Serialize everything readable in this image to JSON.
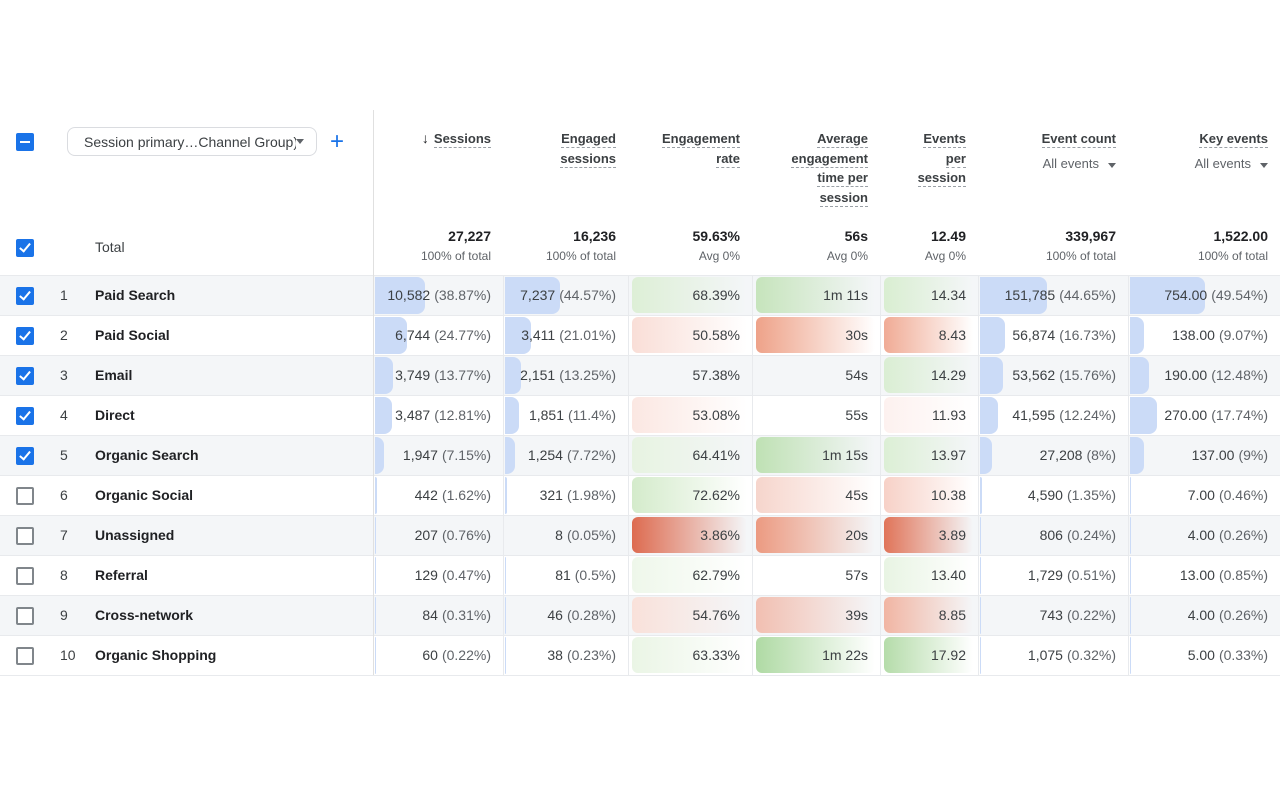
{
  "toolbar": {
    "dimension_label": "Session primary…Channel Group)",
    "add_label": "+"
  },
  "columns": [
    {
      "id": "sessions",
      "header_lines": [
        "Sessions"
      ],
      "sorted": true,
      "type": "bar"
    },
    {
      "id": "engaged-sessions",
      "header_lines": [
        "Engaged",
        "sessions"
      ],
      "type": "bar"
    },
    {
      "id": "engagement-rate",
      "header_lines": [
        "Engagement",
        "rate"
      ],
      "type": "heat"
    },
    {
      "id": "avg-engagement-time",
      "header_lines": [
        "Average",
        "engagement",
        "time per",
        "session"
      ],
      "type": "heat"
    },
    {
      "id": "events-per-session",
      "header_lines": [
        "Events",
        "per",
        "session"
      ],
      "type": "heat"
    },
    {
      "id": "event-count",
      "header_lines": [
        "Event count"
      ],
      "filter": "All events",
      "type": "bar"
    },
    {
      "id": "key-events",
      "header_lines": [
        "Key events"
      ],
      "filter": "All events",
      "type": "bar"
    }
  ],
  "totals": {
    "label": "Total",
    "cells": [
      {
        "value": "27,227",
        "sub": "100% of total"
      },
      {
        "value": "16,236",
        "sub": "100% of total"
      },
      {
        "value": "59.63%",
        "sub": "Avg 0%"
      },
      {
        "value": "56s",
        "sub": "Avg 0%"
      },
      {
        "value": "12.49",
        "sub": "Avg 0%"
      },
      {
        "value": "339,967",
        "sub": "100% of total"
      },
      {
        "value": "1,522.00",
        "sub": "100% of total"
      }
    ]
  },
  "rows": [
    {
      "num": "1",
      "name": "Paid Search",
      "checked": true,
      "cells": [
        {
          "text": "10,582",
          "pct": "(38.87%)",
          "bar": 38.87
        },
        {
          "text": "7,237",
          "pct": "(44.57%)",
          "bar": 44.57
        },
        {
          "text": "68.39%",
          "heat": "#ddefd6"
        },
        {
          "text": "1m 11s",
          "heat": "#c6e4bc"
        },
        {
          "text": "14.34",
          "heat": "#d9eed1"
        },
        {
          "text": "151,785",
          "pct": "(44.65%)",
          "bar": 44.65
        },
        {
          "text": "754.00",
          "pct": "(49.54%)",
          "bar": 49.54
        }
      ]
    },
    {
      "num": "2",
      "name": "Paid Social",
      "checked": true,
      "cells": [
        {
          "text": "6,744",
          "pct": "(24.77%)",
          "bar": 24.77
        },
        {
          "text": "3,411",
          "pct": "(21.01%)",
          "bar": 21.01
        },
        {
          "text": "50.58%",
          "heat": "#f9ded7"
        },
        {
          "text": "30s",
          "heat": "#eea289"
        },
        {
          "text": "8.43",
          "heat": "#f0ab95"
        },
        {
          "text": "56,874",
          "pct": "(16.73%)",
          "bar": 16.73
        },
        {
          "text": "138.00",
          "pct": "(9.07%)",
          "bar": 9.07
        }
      ]
    },
    {
      "num": "3",
      "name": "Email",
      "checked": true,
      "cells": [
        {
          "text": "3,749",
          "pct": "(13.77%)",
          "bar": 13.77
        },
        {
          "text": "2,151",
          "pct": "(13.25%)",
          "bar": 13.25
        },
        {
          "text": "57.38%",
          "heat": null
        },
        {
          "text": "54s",
          "heat": null
        },
        {
          "text": "14.29",
          "heat": "#daeed3"
        },
        {
          "text": "53,562",
          "pct": "(15.76%)",
          "bar": 15.76
        },
        {
          "text": "190.00",
          "pct": "(12.48%)",
          "bar": 12.48
        }
      ]
    },
    {
      "num": "4",
      "name": "Direct",
      "checked": true,
      "cells": [
        {
          "text": "3,487",
          "pct": "(12.81%)",
          "bar": 12.81
        },
        {
          "text": "1,851",
          "pct": "(11.4%)",
          "bar": 11.4
        },
        {
          "text": "53.08%",
          "heat": "#fbe7e2"
        },
        {
          "text": "55s",
          "heat": null
        },
        {
          "text": "11.93",
          "heat": "#fdf1ef"
        },
        {
          "text": "41,595",
          "pct": "(12.24%)",
          "bar": 12.24
        },
        {
          "text": "270.00",
          "pct": "(17.74%)",
          "bar": 17.74
        }
      ]
    },
    {
      "num": "5",
      "name": "Organic Search",
      "checked": true,
      "cells": [
        {
          "text": "1,947",
          "pct": "(7.15%)",
          "bar": 7.15
        },
        {
          "text": "1,254",
          "pct": "(7.72%)",
          "bar": 7.72
        },
        {
          "text": "64.41%",
          "heat": "#e7f3e1"
        },
        {
          "text": "1m 15s",
          "heat": "#bfe1b4"
        },
        {
          "text": "13.97",
          "heat": "#dcefd5"
        },
        {
          "text": "27,208",
          "pct": "(8%)",
          "bar": 8
        },
        {
          "text": "137.00",
          "pct": "(9%)",
          "bar": 9
        }
      ]
    },
    {
      "num": "6",
      "name": "Organic Social",
      "checked": false,
      "cells": [
        {
          "text": "442",
          "pct": "(1.62%)",
          "bar": 1.62
        },
        {
          "text": "321",
          "pct": "(1.98%)",
          "bar": 1.98
        },
        {
          "text": "72.62%",
          "heat": "#d4ebcb"
        },
        {
          "text": "45s",
          "heat": "#f6d5cc"
        },
        {
          "text": "10.38",
          "heat": "#f7d1c7"
        },
        {
          "text": "4,590",
          "pct": "(1.35%)",
          "bar": 1.35
        },
        {
          "text": "7.00",
          "pct": "(0.46%)",
          "bar": 0.46
        }
      ]
    },
    {
      "num": "7",
      "name": "Unassigned",
      "checked": false,
      "cells": [
        {
          "text": "207",
          "pct": "(0.76%)",
          "bar": 0.76
        },
        {
          "text": "8",
          "pct": "(0.05%)",
          "bar": 0.05
        },
        {
          "text": "3.86%",
          "heat": "#dd6b50"
        },
        {
          "text": "20s",
          "heat": "#ec9a81"
        },
        {
          "text": "3.89",
          "heat": "#e07459"
        },
        {
          "text": "806",
          "pct": "(0.24%)",
          "bar": 0.24
        },
        {
          "text": "4.00",
          "pct": "(0.26%)",
          "bar": 0.26
        }
      ]
    },
    {
      "num": "8",
      "name": "Referral",
      "checked": false,
      "cells": [
        {
          "text": "129",
          "pct": "(0.47%)",
          "bar": 0.47
        },
        {
          "text": "81",
          "pct": "(0.5%)",
          "bar": 0.5
        },
        {
          "text": "62.79%",
          "heat": "#eef7ea"
        },
        {
          "text": "57s",
          "heat": null
        },
        {
          "text": "13.40",
          "heat": "#e8f4e3"
        },
        {
          "text": "1,729",
          "pct": "(0.51%)",
          "bar": 0.51
        },
        {
          "text": "13.00",
          "pct": "(0.85%)",
          "bar": 0.85
        }
      ]
    },
    {
      "num": "9",
      "name": "Cross-network",
      "checked": false,
      "cells": [
        {
          "text": "84",
          "pct": "(0.31%)",
          "bar": 0.31
        },
        {
          "text": "46",
          "pct": "(0.28%)",
          "bar": 0.28
        },
        {
          "text": "54.76%",
          "heat": "#f9e1da"
        },
        {
          "text": "39s",
          "heat": "#f2bfb1"
        },
        {
          "text": "8.85",
          "heat": "#f1b5a3"
        },
        {
          "text": "743",
          "pct": "(0.22%)",
          "bar": 0.22
        },
        {
          "text": "4.00",
          "pct": "(0.26%)",
          "bar": 0.26
        }
      ]
    },
    {
      "num": "10",
      "name": "Organic Shopping",
      "checked": false,
      "cells": [
        {
          "text": "60",
          "pct": "(0.22%)",
          "bar": 0.22
        },
        {
          "text": "38",
          "pct": "(0.23%)",
          "bar": 0.23
        },
        {
          "text": "63.33%",
          "heat": "#eaf5e5"
        },
        {
          "text": "1m 22s",
          "heat": "#afdaa4"
        },
        {
          "text": "17.92",
          "heat": "#b5dcaa"
        },
        {
          "text": "1,075",
          "pct": "(0.32%)",
          "bar": 0.32
        },
        {
          "text": "5.00",
          "pct": "(0.33%)",
          "bar": 0.33
        }
      ]
    }
  ],
  "colors": {
    "accent": "#1a73e8",
    "bar_fill": "#cbdbf7",
    "positive_base": "#7cc56e",
    "negative_base": "#dd6b50",
    "row_alt": "#f4f6f8",
    "border": "#e8eaed"
  }
}
